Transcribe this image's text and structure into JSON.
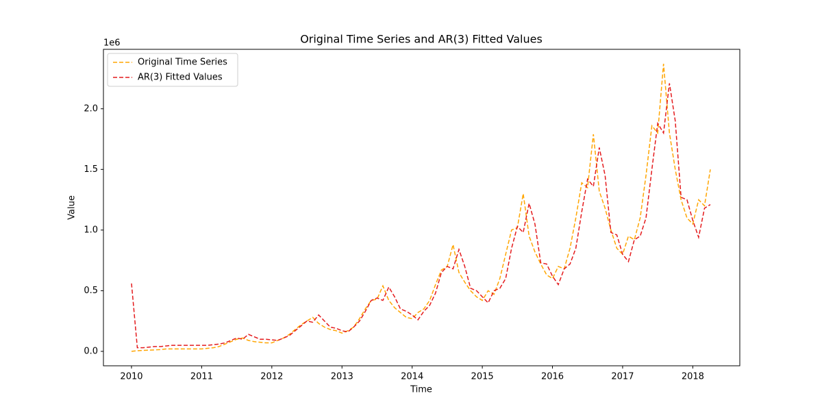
{
  "chart_data": {
    "type": "line",
    "title": "Original Time Series and AR(3) Fitted Values",
    "x_label": "Time",
    "y_label": "Value",
    "y_offset_label": "1e6",
    "x": [
      2010,
      2010.083,
      2010.167,
      2010.25,
      2010.333,
      2010.417,
      2010.5,
      2010.583,
      2010.667,
      2010.75,
      2010.833,
      2010.917,
      2011,
      2011.083,
      2011.167,
      2011.25,
      2011.333,
      2011.417,
      2011.5,
      2011.583,
      2011.667,
      2011.75,
      2011.833,
      2011.917,
      2012,
      2012.083,
      2012.167,
      2012.25,
      2012.333,
      2012.417,
      2012.5,
      2012.583,
      2012.667,
      2012.75,
      2012.833,
      2012.917,
      2013,
      2013.083,
      2013.167,
      2013.25,
      2013.333,
      2013.417,
      2013.5,
      2013.583,
      2013.667,
      2013.75,
      2013.833,
      2013.917,
      2014,
      2014.083,
      2014.167,
      2014.25,
      2014.333,
      2014.417,
      2014.5,
      2014.583,
      2014.667,
      2014.75,
      2014.833,
      2014.917,
      2015,
      2015.083,
      2015.167,
      2015.25,
      2015.333,
      2015.417,
      2015.5,
      2015.583,
      2015.667,
      2015.75,
      2015.833,
      2015.917,
      2016,
      2016.083,
      2016.167,
      2016.25,
      2016.333,
      2016.417,
      2016.5,
      2016.583,
      2016.667,
      2016.75,
      2016.833,
      2016.917,
      2017,
      2017.083,
      2017.167,
      2017.25,
      2017.333,
      2017.417,
      2017.5,
      2017.583,
      2017.667,
      2017.75,
      2017.833,
      2017.917,
      2018,
      2018.083,
      2018.167,
      2018.25
    ],
    "series": [
      {
        "name": "Original Time Series",
        "color": "#ffa500",
        "dash": "6,3",
        "values": [
          0.0,
          0.005,
          0.008,
          0.01,
          0.012,
          0.015,
          0.02,
          0.02,
          0.02,
          0.02,
          0.02,
          0.02,
          0.02,
          0.025,
          0.03,
          0.04,
          0.06,
          0.08,
          0.1,
          0.11,
          0.09,
          0.08,
          0.075,
          0.07,
          0.07,
          0.09,
          0.11,
          0.14,
          0.18,
          0.22,
          0.25,
          0.28,
          0.23,
          0.2,
          0.18,
          0.17,
          0.15,
          0.17,
          0.2,
          0.27,
          0.35,
          0.42,
          0.43,
          0.54,
          0.42,
          0.36,
          0.32,
          0.28,
          0.27,
          0.32,
          0.35,
          0.42,
          0.55,
          0.67,
          0.7,
          0.88,
          0.65,
          0.57,
          0.5,
          0.45,
          0.42,
          0.5,
          0.47,
          0.6,
          0.8,
          1.0,
          1.02,
          1.3,
          0.95,
          0.82,
          0.72,
          0.63,
          0.6,
          0.7,
          0.68,
          0.85,
          1.1,
          1.39,
          1.35,
          1.79,
          1.32,
          1.18,
          1.0,
          0.85,
          0.8,
          0.95,
          0.92,
          1.1,
          1.45,
          1.86,
          1.8,
          2.37,
          1.8,
          1.5,
          1.25,
          1.1,
          1.05,
          1.25,
          1.2,
          1.5
        ]
      },
      {
        "name": "AR(3) Fitted Values",
        "color": "#e41a1c",
        "dash": "6,3",
        "values": [
          0.56,
          0.03,
          0.03,
          0.035,
          0.04,
          0.04,
          0.045,
          0.05,
          0.05,
          0.05,
          0.05,
          0.05,
          0.05,
          0.05,
          0.055,
          0.06,
          0.07,
          0.09,
          0.11,
          0.1,
          0.14,
          0.12,
          0.1,
          0.1,
          0.095,
          0.09,
          0.11,
          0.13,
          0.17,
          0.21,
          0.25,
          0.24,
          0.3,
          0.25,
          0.2,
          0.19,
          0.17,
          0.16,
          0.2,
          0.25,
          0.33,
          0.42,
          0.44,
          0.42,
          0.53,
          0.45,
          0.35,
          0.33,
          0.3,
          0.26,
          0.33,
          0.38,
          0.48,
          0.65,
          0.7,
          0.68,
          0.84,
          0.7,
          0.52,
          0.5,
          0.45,
          0.4,
          0.5,
          0.52,
          0.6,
          0.85,
          1.03,
          0.98,
          1.22,
          1.05,
          0.73,
          0.72,
          0.62,
          0.55,
          0.68,
          0.72,
          0.85,
          1.15,
          1.42,
          1.36,
          1.68,
          1.45,
          0.98,
          0.96,
          0.8,
          0.74,
          0.92,
          0.95,
          1.1,
          1.5,
          1.88,
          1.8,
          2.21,
          1.9,
          1.27,
          1.25,
          1.08,
          0.94,
          1.18,
          1.21
        ]
      }
    ],
    "xlim": [
      2009.6,
      2018.67
    ],
    "xticks": [
      2010,
      2011,
      2012,
      2013,
      2014,
      2015,
      2016,
      2017,
      2018
    ],
    "ylim": [
      -0.119,
      2.49
    ],
    "yticks": [
      {
        "value": 0,
        "label": "0.0"
      },
      {
        "value": 0.5,
        "label": "0.5"
      },
      {
        "value": 1,
        "label": "1.0"
      },
      {
        "value": 1.5,
        "label": "1.5"
      },
      {
        "value": 2,
        "label": "2.0"
      }
    ],
    "legend": "upper left",
    "grid": false
  }
}
